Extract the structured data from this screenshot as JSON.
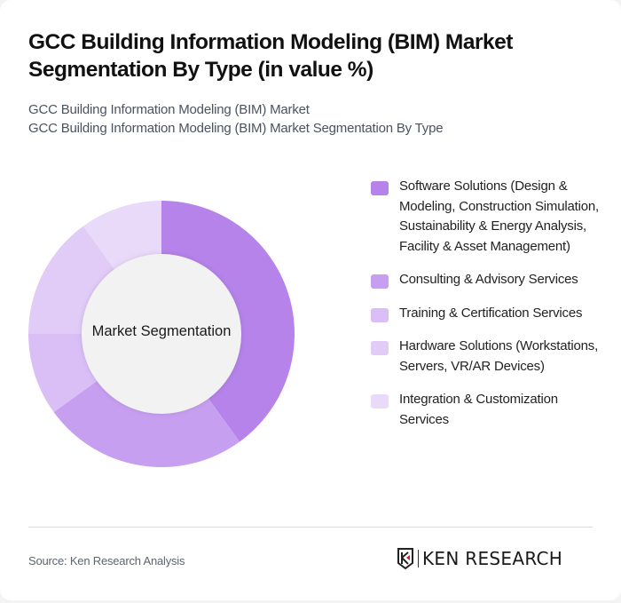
{
  "header": {
    "title": "GCC Building Information Modeling (BIM) Market Segmentation By Type (in value %)",
    "subtitle_line1": "GCC Building Information Modeling (BIM) Market",
    "subtitle_line2": "GCC Building Information Modeling (BIM) Market Segmentation By Type"
  },
  "chart_data": {
    "type": "pie",
    "subtype": "donut",
    "title": "GCC Building Information Modeling (BIM) Market Segmentation By Type (in value %)",
    "center_label": "Market Segmentation",
    "categories": [
      "Software Solutions (Design & Modeling, Construction Simulation, Sustainability & Energy Analysis, Facility & Asset Management)",
      "Consulting & Advisory Services",
      "Training & Certification Services",
      "Hardware Solutions (Workstations, Servers, VR/AR Devices)",
      "Integration & Customization Services"
    ],
    "values": [
      40,
      25,
      10,
      15,
      10
    ],
    "colors": [
      "#b583ea",
      "#c79ff0",
      "#d9bff6",
      "#e1cbf7",
      "#e9dafa"
    ],
    "legend_position": "right",
    "start_angle": "12 o'clock, clockwise"
  },
  "legend": {
    "items": [
      {
        "label": "Software Solutions (Design & Modeling, Construction Simulation, Sustainability & Energy Analysis, Facility & Asset Management)",
        "color": "#b583ea"
      },
      {
        "label": "Consulting & Advisory Services",
        "color": "#c79ff0"
      },
      {
        "label": "Training & Certification Services",
        "color": "#d9bff6"
      },
      {
        "label": "Hardware Solutions (Workstations, Servers, VR/AR Devices)",
        "color": "#e1cbf7"
      },
      {
        "label": "Integration & Customization Services",
        "color": "#e9dafa"
      }
    ]
  },
  "footer": {
    "source": "Source: Ken Research Analysis",
    "logo_text": "KEN RESEARCH"
  }
}
